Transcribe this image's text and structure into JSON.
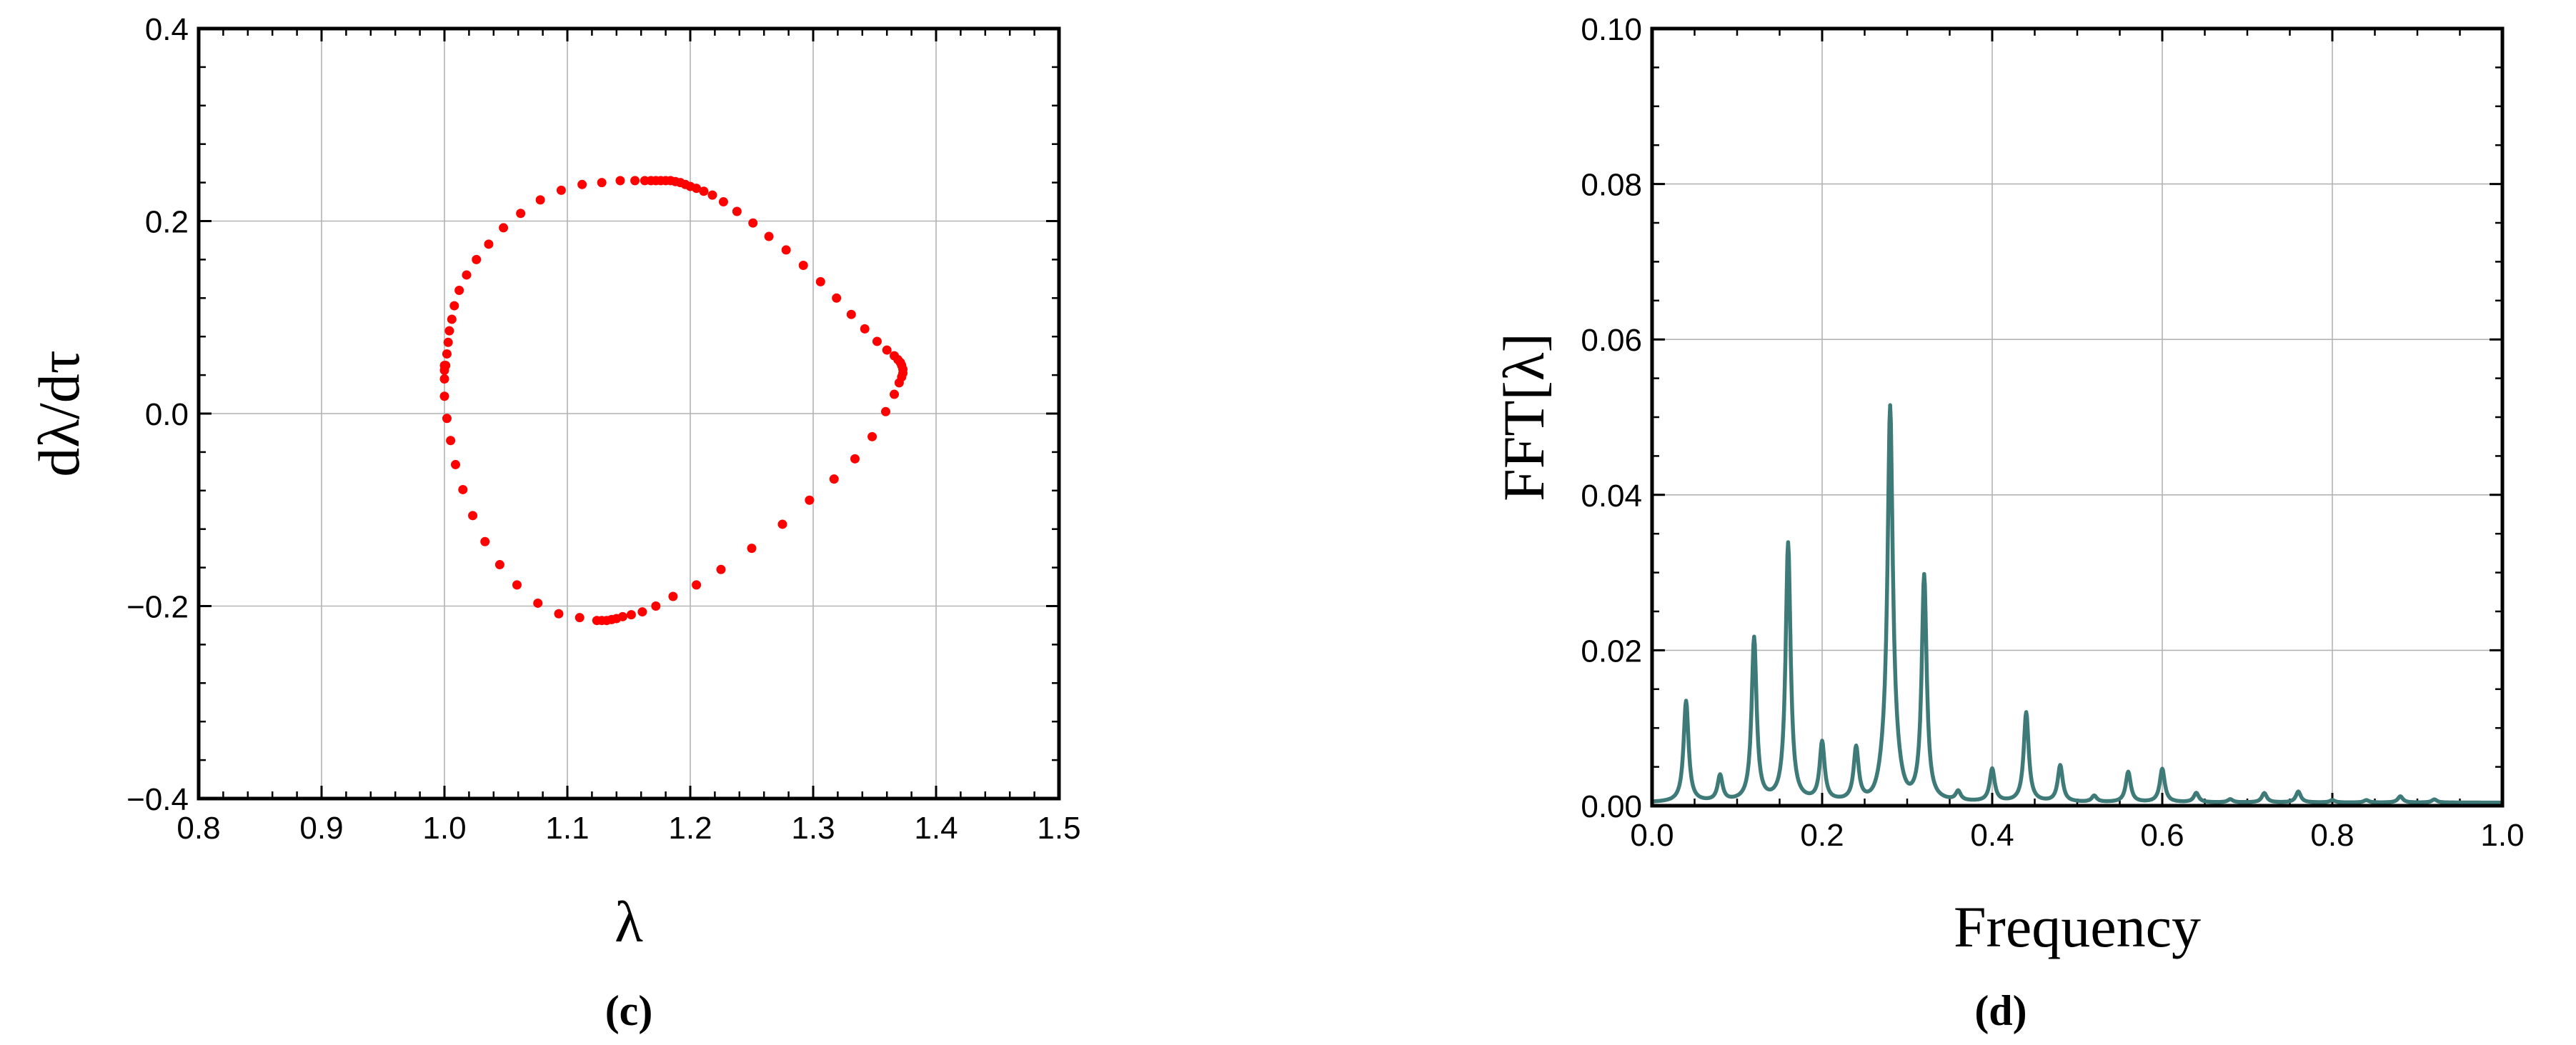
{
  "chart_data": [
    {
      "type": "scatter",
      "panel_label": "(c)",
      "xlabel": "λ",
      "ylabel": "dλ/dτ",
      "xlim": [
        0.8,
        1.5
      ],
      "ylim": [
        -0.4,
        0.4
      ],
      "xticks": [
        "0.8",
        "0.9",
        "1.0",
        "1.1",
        "1.2",
        "1.3",
        "1.4",
        "1.5"
      ],
      "yticks": [
        "−0.4",
        "−0.2",
        "0.0",
        "0.2",
        "0.4"
      ],
      "grid": true,
      "marker_color": "#ff0000",
      "series": [
        {
          "x": [
            1.001,
            1.002,
            1.003,
            1.004,
            1.006,
            1.008,
            1.012,
            1.018,
            1.026,
            1.036,
            1.048,
            1.062,
            1.078,
            1.095,
            1.112,
            1.128,
            1.143,
            1.155,
            1.163,
            1.168,
            1.172,
            1.176,
            1.18,
            1.184,
            1.188,
            1.192,
            1.196,
            1.2,
            1.205,
            1.211,
            1.218,
            1.227,
            1.238,
            1.251,
            1.264,
            1.278,
            1.292,
            1.306,
            1.319,
            1.331,
            1.342,
            1.352,
            1.36,
            1.366,
            1.369,
            1.371,
            1.372,
            1.373,
            1.373,
            1.372,
            1.37,
            1.366,
            1.359,
            1.348,
            1.334,
            1.317,
            1.297,
            1.275,
            1.25,
            1.225,
            1.205,
            1.186,
            1.172,
            1.161,
            1.152,
            1.145,
            1.14,
            1.136,
            1.132,
            1.128,
            1.124,
            1.11,
            1.093,
            1.076,
            1.059,
            1.045,
            1.033,
            1.023,
            1.015,
            1.009,
            1.005,
            1.002,
            1.0,
            1.0,
            1.0,
            1.0
          ],
          "y": [
            0.05,
            0.062,
            0.074,
            0.086,
            0.098,
            0.112,
            0.128,
            0.144,
            0.16,
            0.176,
            0.193,
            0.208,
            0.222,
            0.232,
            0.238,
            0.24,
            0.242,
            0.242,
            0.242,
            0.242,
            0.242,
            0.242,
            0.242,
            0.242,
            0.241,
            0.24,
            0.238,
            0.236,
            0.234,
            0.231,
            0.227,
            0.22,
            0.21,
            0.198,
            0.184,
            0.17,
            0.154,
            0.137,
            0.12,
            0.103,
            0.088,
            0.075,
            0.066,
            0.06,
            0.056,
            0.053,
            0.05,
            0.046,
            0.042,
            0.038,
            0.032,
            0.02,
            0.002,
            -0.024,
            -0.047,
            -0.068,
            -0.09,
            -0.115,
            -0.14,
            -0.162,
            -0.178,
            -0.19,
            -0.2,
            -0.206,
            -0.209,
            -0.211,
            -0.213,
            -0.214,
            -0.215,
            -0.215,
            -0.215,
            -0.212,
            -0.208,
            -0.197,
            -0.178,
            -0.157,
            -0.133,
            -0.106,
            -0.079,
            -0.053,
            -0.028,
            -0.005,
            0.018,
            0.036,
            0.045,
            0.05
          ]
        }
      ]
    },
    {
      "type": "line",
      "panel_label": "(d)",
      "xlabel": "Frequency",
      "ylabel": "FFT[λ]",
      "xlim": [
        0.0,
        1.0
      ],
      "ylim": [
        0.0,
        0.1
      ],
      "xticks": [
        "0.0",
        "0.2",
        "0.4",
        "0.6",
        "0.8",
        "1.0"
      ],
      "yticks": [
        "0.00",
        "0.02",
        "0.04",
        "0.06",
        "0.08",
        "0.10"
      ],
      "grid": true,
      "line_color": "#3d7a78",
      "series": [
        {
          "peaks": {
            "x": [
              0.04,
              0.08,
              0.12,
              0.16,
              0.2,
              0.24,
              0.28,
              0.32,
              0.36,
              0.4,
              0.44,
              0.48,
              0.52,
              0.56,
              0.6,
              0.64,
              0.68,
              0.72,
              0.76,
              0.8,
              0.84,
              0.88,
              0.92
            ],
            "y": [
              0.013,
              0.0033,
              0.021,
              0.0332,
              0.0075,
              0.0068,
              0.0448,
              0.029,
              0.0012,
              0.0042,
              0.0115,
              0.0047,
              0.0008,
              0.0039,
              0.0043,
              0.0012,
              0.0004,
              0.0012,
              0.0014,
              0.0003,
              0.0003,
              0.0008,
              0.0004
            ]
          },
          "baseline": 0.0004
        }
      ]
    }
  ]
}
